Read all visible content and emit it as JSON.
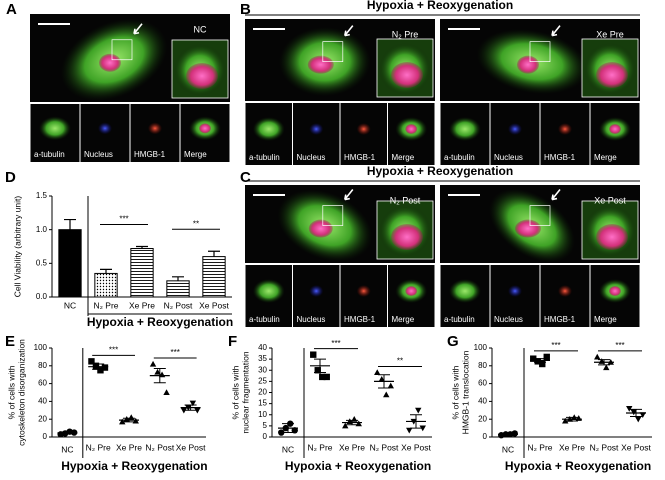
{
  "micrograph_groups": [
    {
      "letter": "A",
      "panels": [
        {
          "condition": "NC",
          "channels": [
            "a-tubulin",
            "Nucleus",
            "HMGB-1",
            "Merge"
          ]
        }
      ]
    },
    {
      "letter": "B",
      "title": "Hypoxia + Reoxygenation",
      "panels": [
        {
          "condition": "N₂ Pre",
          "channels": [
            "a-tubulin",
            "Nucleus",
            "HMGB-1",
            "Merge"
          ]
        },
        {
          "condition": "Xe Pre",
          "channels": [
            "a-tubulin",
            "Nucleus",
            "HMGB-1",
            "Merge"
          ]
        }
      ]
    },
    {
      "letter": "C",
      "title": "Hypoxia + Reoxygenation",
      "panels": [
        {
          "condition": "N₂ Post",
          "channels": [
            "a-tubulin",
            "Nucleus",
            "HMGB-1",
            "Merge"
          ]
        },
        {
          "condition": "Xe Post",
          "channels": [
            "a-tubulin",
            "Nucleus",
            "HMGB-1",
            "Merge"
          ]
        }
      ]
    }
  ],
  "chart_data": [
    {
      "letter": "D",
      "type": "bar",
      "ylabel": [
        "Cell Viability (arbitrary unit)"
      ],
      "xlabel": "Hypoxia + Reoxygenation",
      "categories": [
        "NC",
        "N₂ Pre",
        "Xe Pre",
        "N₂ Post",
        "Xe Post"
      ],
      "values": [
        1.0,
        0.35,
        0.72,
        0.24,
        0.6
      ],
      "errors": [
        0.15,
        0.06,
        0.03,
        0.06,
        0.08
      ],
      "fills": [
        "solid",
        "dots",
        "hlines",
        "hlines",
        "hlines"
      ],
      "ylim": [
        0,
        1.5
      ],
      "yticks": [
        {
          "value": 0,
          "label": "0.0"
        },
        0.5,
        {
          "value": 1,
          "label": "1.0"
        },
        1.5
      ],
      "significance": [
        {
          "label": "***",
          "between": [
            "N₂ Pre",
            "Xe Pre"
          ]
        },
        {
          "label": "**",
          "between": [
            "N₂ Post",
            "Xe Post"
          ]
        }
      ]
    },
    {
      "letter": "E",
      "type": "dotplot",
      "ylabel": [
        "% of cells with",
        "cytoskeleton disorganization"
      ],
      "xlabel": "Hypoxia + Reoxygenation",
      "categories": [
        "NC",
        "N₂ Pre",
        "Xe Pre",
        "N₂ Post",
        "Xe Post"
      ],
      "markers": [
        "circle",
        "square",
        "triangle",
        "triangle",
        "triangle-down"
      ],
      "points": [
        [
          3,
          4,
          6,
          5
        ],
        [
          85,
          80,
          75,
          78
        ],
        [
          17,
          20,
          22,
          18
        ],
        [
          82,
          73,
          70,
          50
        ],
        [
          30,
          33,
          38,
          30
        ]
      ],
      "means": [
        4.5,
        79,
        19,
        69,
        33
      ],
      "errors": [
        1,
        3,
        2,
        8,
        3
      ],
      "ylim": [
        0,
        100
      ],
      "yticks": [
        0,
        20,
        40,
        60,
        80,
        100
      ],
      "significance": [
        {
          "label": "***",
          "between": [
            "N₂ Pre",
            "Xe Pre"
          ]
        },
        {
          "label": "***",
          "between": [
            "N₂ Post",
            "Xe Post"
          ]
        }
      ]
    },
    {
      "letter": "F",
      "type": "dotplot",
      "ylabel": [
        "% of cells with",
        "nuclear fragmentation"
      ],
      "xlabel": "Hypoxia + Reoxygenation",
      "categories": [
        "NC",
        "N₂ Pre",
        "Xe Pre",
        "N₂ Post",
        "Xe Post"
      ],
      "markers": [
        "circle",
        "square",
        "triangle",
        "triangle",
        "triangle-down"
      ],
      "points": [
        [
          2,
          4,
          6,
          3
        ],
        [
          37,
          30,
          27,
          27
        ],
        [
          5,
          7,
          8,
          6
        ],
        [
          29,
          26,
          19,
          23
        ],
        [
          3,
          7,
          12,
          4
        ]
      ],
      "means": [
        4,
        32,
        6.5,
        25,
        7
      ],
      "errors": [
        2,
        3,
        1,
        3,
        3
      ],
      "ylim": [
        0,
        40
      ],
      "yticks": [
        0,
        5,
        10,
        15,
        20,
        25,
        30,
        35,
        40
      ],
      "significance": [
        {
          "label": "***",
          "between": [
            "N₂ Pre",
            "Xe Pre"
          ]
        },
        {
          "label": "**",
          "between": [
            "N₂ Post",
            "Xe Post"
          ]
        }
      ]
    },
    {
      "letter": "G",
      "type": "dotplot",
      "ylabel": [
        "% of cells with",
        "HMGB-1 translocation"
      ],
      "xlabel": "Hypoxia + Reoxygenation",
      "categories": [
        "NC",
        "N₂ Pre",
        "Xe Pre",
        "N₂ Post",
        "Xe Post"
      ],
      "markers": [
        "circle",
        "square",
        "triangle",
        "triangle",
        "triangle-down"
      ],
      "points": [
        [
          2,
          3,
          3,
          4
        ],
        [
          88,
          85,
          82,
          90
        ],
        [
          18,
          20,
          22,
          21
        ],
        [
          90,
          85,
          78,
          84
        ],
        [
          32,
          28,
          20,
          25
        ]
      ],
      "means": [
        3,
        86,
        20,
        84,
        27
      ],
      "errors": [
        1,
        2,
        2,
        3,
        4
      ],
      "ylim": [
        0,
        100
      ],
      "yticks": [
        0,
        20,
        40,
        60,
        80,
        100
      ],
      "significance": [
        {
          "label": "***",
          "between": [
            "N₂ Pre",
            "Xe Pre"
          ]
        },
        {
          "label": "***",
          "between": [
            "N₂ Post",
            "Xe Post"
          ]
        }
      ]
    }
  ]
}
